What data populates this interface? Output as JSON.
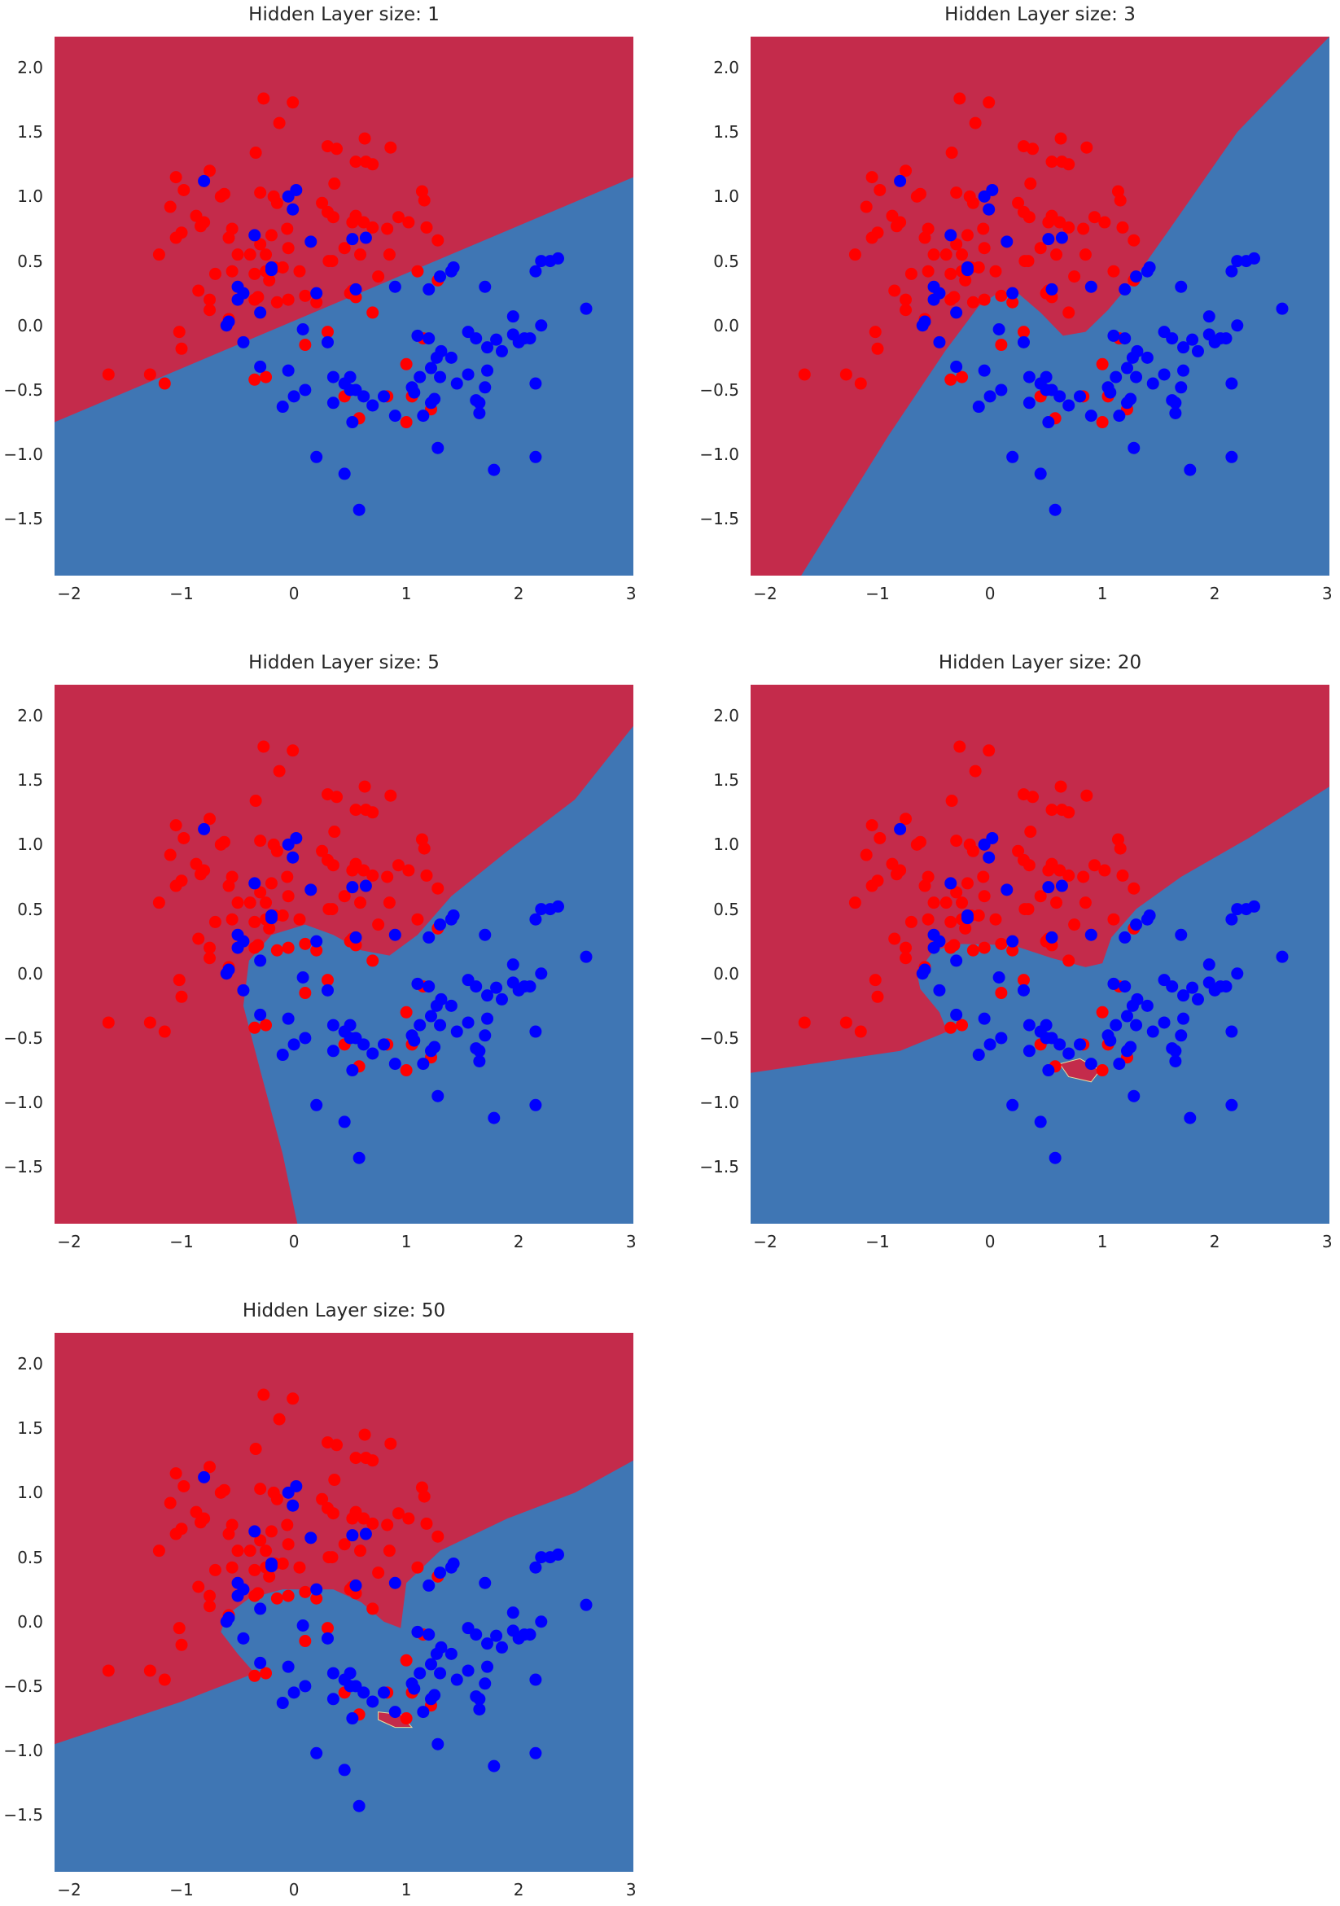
{
  "chart_data": [
    {
      "type": "scatter+contour",
      "title": "Hidden Layer size: 1",
      "boundary": [
        [
          -2.13,
          -0.75
        ],
        [
          3.02,
          1.15
        ]
      ],
      "islands": []
    },
    {
      "type": "scatter+contour",
      "title": "Hidden Layer size: 3",
      "boundary": [
        [
          -1.68,
          -1.94
        ],
        [
          -0.9,
          -0.85
        ],
        [
          -0.4,
          -0.2
        ],
        [
          -0.1,
          0.15
        ],
        [
          0.1,
          0.27
        ],
        [
          0.25,
          0.25
        ],
        [
          0.45,
          0.1
        ],
        [
          0.65,
          -0.08
        ],
        [
          0.85,
          -0.05
        ],
        [
          1.05,
          0.12
        ],
        [
          1.3,
          0.38
        ],
        [
          1.6,
          0.75
        ],
        [
          2.2,
          1.5
        ],
        [
          3.02,
          2.24
        ]
      ],
      "islands": []
    },
    {
      "type": "scatter+contour",
      "title": "Hidden Layer size: 5",
      "boundary": [
        [
          0.03,
          -1.94
        ],
        [
          -0.1,
          -1.4
        ],
        [
          -0.3,
          -0.75
        ],
        [
          -0.45,
          -0.25
        ],
        [
          -0.4,
          0.1
        ],
        [
          -0.2,
          0.3
        ],
        [
          0.1,
          0.38
        ],
        [
          0.35,
          0.3
        ],
        [
          0.6,
          0.18
        ],
        [
          0.85,
          0.14
        ],
        [
          1.1,
          0.3
        ],
        [
          1.4,
          0.6
        ],
        [
          1.9,
          0.95
        ],
        [
          2.5,
          1.35
        ],
        [
          3.02,
          1.92
        ]
      ],
      "islands": []
    },
    {
      "type": "scatter+contour",
      "title": "Hidden Layer size: 20",
      "boundary": [
        [
          -2.13,
          -0.77
        ],
        [
          -0.8,
          -0.6
        ],
        [
          -0.38,
          -0.45
        ],
        [
          -0.45,
          -0.3
        ],
        [
          -0.62,
          -0.12
        ],
        [
          -0.65,
          0.0
        ],
        [
          -0.5,
          0.18
        ],
        [
          -0.25,
          0.23
        ],
        [
          0.2,
          0.22
        ],
        [
          0.55,
          0.12
        ],
        [
          0.85,
          0.05
        ],
        [
          1.0,
          0.08
        ],
        [
          1.08,
          0.28
        ],
        [
          1.3,
          0.5
        ],
        [
          1.7,
          0.75
        ],
        [
          2.3,
          1.05
        ],
        [
          3.02,
          1.45
        ]
      ],
      "islands": [
        [
          [
            0.62,
            -0.7
          ],
          [
            0.8,
            -0.66
          ],
          [
            0.98,
            -0.75
          ],
          [
            0.9,
            -0.84
          ],
          [
            0.7,
            -0.8
          ]
        ]
      ]
    },
    {
      "type": "scatter+contour",
      "title": "Hidden Layer size: 50",
      "boundary": [
        [
          -2.13,
          -0.95
        ],
        [
          -1.0,
          -0.62
        ],
        [
          -0.35,
          -0.4
        ],
        [
          -0.5,
          -0.25
        ],
        [
          -0.65,
          -0.08
        ],
        [
          -0.6,
          0.05
        ],
        [
          -0.4,
          0.18
        ],
        [
          -0.1,
          0.25
        ],
        [
          0.35,
          0.25
        ],
        [
          0.6,
          0.15
        ],
        [
          0.8,
          0.0
        ],
        [
          0.95,
          -0.05
        ],
        [
          1.0,
          0.3
        ],
        [
          1.3,
          0.55
        ],
        [
          1.9,
          0.8
        ],
        [
          2.5,
          1.0
        ],
        [
          3.02,
          1.25
        ]
      ],
      "islands": [
        [
          [
            0.75,
            -0.7
          ],
          [
            0.95,
            -0.72
          ],
          [
            1.05,
            -0.82
          ],
          [
            0.9,
            -0.82
          ],
          [
            0.75,
            -0.76
          ]
        ]
      ]
    }
  ],
  "axes": {
    "xlim": [
      -2.13,
      3.02
    ],
    "ylim": [
      -1.94,
      2.24
    ],
    "xticks": [
      "−2",
      "−1",
      "0",
      "1",
      "2",
      "3"
    ],
    "xtick_values": [
      -2,
      -1,
      0,
      1,
      2,
      3
    ],
    "yticks": [
      "2.0",
      "1.5",
      "1.0",
      "0.5",
      "0.0",
      "−0.5",
      "−1.0",
      "−1.5"
    ],
    "ytick_values": [
      2,
      1.5,
      1,
      0.5,
      0,
      -0.5,
      -1,
      -1.5
    ]
  },
  "colors": {
    "class0_region": "#c42b4b",
    "class1_region": "#3f76b4",
    "class0_point": "#ff0000",
    "class1_point": "#0000ff"
  },
  "points": {
    "red": [
      [
        -0.27,
        1.76
      ],
      [
        -0.01,
        1.73
      ],
      [
        -0.13,
        1.57
      ],
      [
        -0.34,
        1.34
      ],
      [
        0.3,
        1.39
      ],
      [
        0.38,
        1.37
      ],
      [
        0.63,
        1.45
      ],
      [
        0.86,
        1.38
      ],
      [
        0.55,
        1.27
      ],
      [
        0.64,
        1.27
      ],
      [
        0.7,
        1.25
      ],
      [
        -1.05,
        1.15
      ],
      [
        -0.75,
        1.2
      ],
      [
        -0.98,
        1.05
      ],
      [
        -0.65,
        1.0
      ],
      [
        -0.62,
        1.02
      ],
      [
        -1.1,
        0.92
      ],
      [
        -0.87,
        0.85
      ],
      [
        -0.8,
        0.8
      ],
      [
        -0.83,
        0.77
      ],
      [
        -1.0,
        0.72
      ],
      [
        -1.05,
        0.68
      ],
      [
        -0.55,
        0.75
      ],
      [
        -0.58,
        0.68
      ],
      [
        -0.3,
        1.03
      ],
      [
        -0.18,
        1.0
      ],
      [
        -0.15,
        0.95
      ],
      [
        -0.2,
        0.7
      ],
      [
        -0.06,
        0.75
      ],
      [
        0.36,
        1.1
      ],
      [
        0.25,
        0.95
      ],
      [
        0.3,
        0.88
      ],
      [
        0.35,
        0.84
      ],
      [
        0.52,
        0.8
      ],
      [
        0.7,
        0.76
      ],
      [
        0.83,
        0.75
      ],
      [
        0.93,
        0.84
      ],
      [
        1.02,
        0.8
      ],
      [
        1.14,
        1.04
      ],
      [
        1.16,
        0.97
      ],
      [
        1.18,
        0.76
      ],
      [
        1.28,
        0.66
      ],
      [
        0.55,
        0.85
      ],
      [
        -0.39,
        0.55
      ],
      [
        -0.3,
        0.63
      ],
      [
        -0.25,
        0.55
      ],
      [
        -0.05,
        0.6
      ],
      [
        -0.5,
        0.55
      ],
      [
        -0.35,
        0.4
      ],
      [
        -0.1,
        0.45
      ],
      [
        0.05,
        0.42
      ],
      [
        -0.17,
        0.45
      ],
      [
        -0.22,
        0.35
      ],
      [
        0.45,
        0.6
      ],
      [
        0.59,
        0.55
      ],
      [
        0.31,
        0.5
      ],
      [
        0.34,
        0.5
      ],
      [
        0.62,
        0.8
      ],
      [
        0.5,
        0.25
      ],
      [
        0.75,
        0.38
      ],
      [
        0.85,
        0.55
      ],
      [
        -0.7,
        0.4
      ],
      [
        -0.55,
        0.42
      ],
      [
        -0.25,
        0.42
      ],
      [
        -0.35,
        0.2
      ],
      [
        -0.05,
        0.2
      ],
      [
        -1.2,
        0.55
      ],
      [
        -0.85,
        0.27
      ],
      [
        -0.75,
        0.12
      ],
      [
        -0.58,
        0.05
      ],
      [
        -0.75,
        0.2
      ],
      [
        -0.32,
        0.22
      ],
      [
        -0.15,
        0.18
      ],
      [
        0.1,
        0.23
      ],
      [
        0.2,
        0.18
      ],
      [
        0.52,
        0.27
      ],
      [
        0.55,
        0.22
      ],
      [
        0.7,
        0.1
      ],
      [
        1.1,
        0.42
      ],
      [
        1.28,
        0.35
      ],
      [
        -1.02,
        -0.05
      ],
      [
        -1.0,
        -0.18
      ],
      [
        -1.28,
        -0.38
      ],
      [
        -1.65,
        -0.38
      ],
      [
        -1.15,
        -0.45
      ],
      [
        0.3,
        -0.05
      ],
      [
        0.1,
        -0.15
      ],
      [
        0.45,
        -0.55
      ],
      [
        0.83,
        -0.55
      ],
      [
        1.05,
        -0.55
      ],
      [
        0.58,
        -0.72
      ],
      [
        1.0,
        -0.75
      ],
      [
        1.22,
        -0.65
      ],
      [
        1.0,
        -0.3
      ],
      [
        -0.35,
        -0.42
      ],
      [
        -0.25,
        -0.4
      ],
      [
        1.15,
        -0.1
      ]
    ],
    "blue": [
      [
        -0.8,
        1.12
      ],
      [
        0.02,
        1.05
      ],
      [
        -0.05,
        1.0
      ],
      [
        -0.01,
        0.9
      ],
      [
        0.15,
        0.65
      ],
      [
        0.52,
        0.67
      ],
      [
        0.64,
        0.68
      ],
      [
        -0.35,
        0.7
      ],
      [
        -0.2,
        0.45
      ],
      [
        -0.2,
        0.43
      ],
      [
        0.55,
        0.28
      ],
      [
        0.9,
        0.3
      ],
      [
        -0.45,
        0.25
      ],
      [
        -0.5,
        0.2
      ],
      [
        -0.5,
        0.3
      ],
      [
        0.2,
        0.25
      ],
      [
        -0.3,
        0.1
      ],
      [
        -0.58,
        0.03
      ],
      [
        -0.6,
        0.0
      ],
      [
        -0.45,
        -0.13
      ],
      [
        0.08,
        -0.03
      ],
      [
        0.3,
        -0.13
      ],
      [
        0.5,
        -0.5
      ],
      [
        -0.3,
        -0.32
      ],
      [
        1.05,
        -0.48
      ],
      [
        1.07,
        -0.52
      ],
      [
        1.22,
        -0.6
      ],
      [
        1.25,
        -0.57
      ],
      [
        1.12,
        -0.4
      ],
      [
        1.22,
        -0.33
      ],
      [
        1.2,
        -0.1
      ],
      [
        1.1,
        -0.08
      ],
      [
        1.31,
        -0.2
      ],
      [
        1.27,
        -0.25
      ],
      [
        1.4,
        -0.25
      ],
      [
        1.3,
        -0.4
      ],
      [
        1.45,
        -0.45
      ],
      [
        1.55,
        -0.05
      ],
      [
        1.62,
        -0.1
      ],
      [
        1.55,
        -0.38
      ],
      [
        1.72,
        -0.35
      ],
      [
        1.72,
        -0.17
      ],
      [
        1.8,
        -0.11
      ],
      [
        1.85,
        -0.2
      ],
      [
        1.7,
        -0.48
      ],
      [
        1.62,
        -0.58
      ],
      [
        1.65,
        -0.6
      ],
      [
        1.2,
        0.28
      ],
      [
        1.4,
        0.42
      ],
      [
        1.3,
        0.38
      ],
      [
        1.42,
        0.45
      ],
      [
        1.7,
        0.3
      ],
      [
        1.95,
        0.07
      ],
      [
        2.15,
        0.42
      ],
      [
        2.2,
        0.5
      ],
      [
        2.28,
        0.5
      ],
      [
        2.35,
        0.52
      ],
      [
        2.6,
        0.13
      ],
      [
        2.0,
        -0.13
      ],
      [
        2.1,
        -0.1
      ],
      [
        2.15,
        -0.45
      ],
      [
        2.2,
        0.0
      ],
      [
        1.95,
        -0.07
      ],
      [
        2.05,
        -0.1
      ],
      [
        0.35,
        -0.4
      ],
      [
        0.45,
        -0.45
      ],
      [
        0.5,
        -0.4
      ],
      [
        0.55,
        -0.5
      ],
      [
        0.62,
        -0.55
      ],
      [
        0.7,
        -0.62
      ],
      [
        0.8,
        -0.55
      ],
      [
        0.9,
        -0.7
      ],
      [
        1.15,
        -0.7
      ],
      [
        1.28,
        -0.95
      ],
      [
        0.2,
        -1.02
      ],
      [
        0.45,
        -1.15
      ],
      [
        0.58,
        -1.43
      ],
      [
        1.78,
        -1.12
      ],
      [
        2.15,
        -1.02
      ],
      [
        0.1,
        -0.5
      ],
      [
        0.0,
        -0.55
      ],
      [
        -0.1,
        -0.63
      ],
      [
        1.65,
        -0.68
      ],
      [
        0.52,
        -0.75
      ],
      [
        -0.05,
        -0.35
      ],
      [
        0.35,
        -0.6
      ]
    ]
  }
}
